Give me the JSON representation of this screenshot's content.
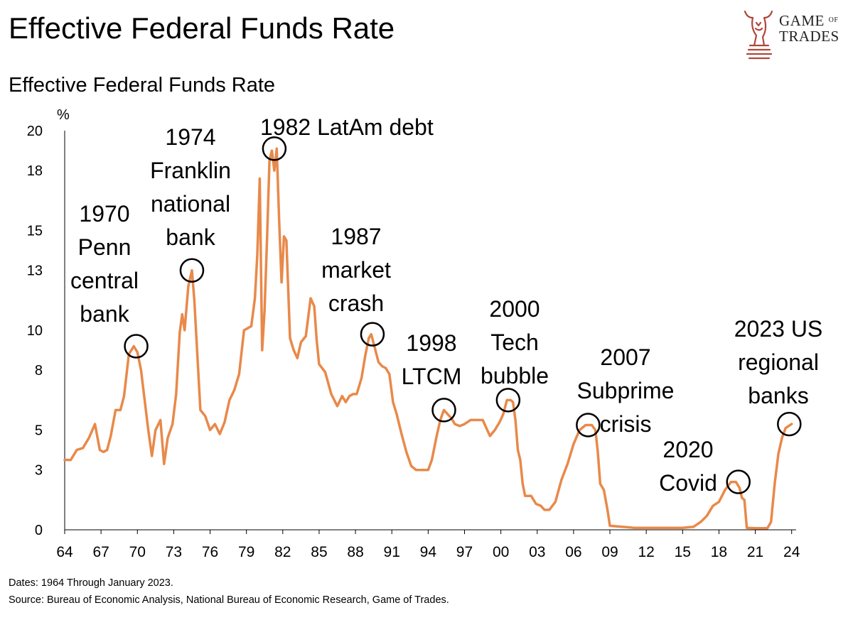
{
  "header": {
    "title": "Effective Federal Funds Rate",
    "logo": {
      "line1": "GAME",
      "of": "OF",
      "line2": "TRADES",
      "icon": "bull-chess-knight-icon",
      "color": "#b0463a"
    }
  },
  "chart_data": {
    "type": "line",
    "title": "Effective Federal Funds Rate",
    "ylabel": "%",
    "xlabel": "",
    "xlim": [
      1964,
      2024.5
    ],
    "ylim": [
      0,
      20
    ],
    "yticks": [
      0,
      3,
      5,
      8,
      10,
      13,
      15,
      18,
      20
    ],
    "xticks": [
      {
        "label": "64",
        "x": 1964
      },
      {
        "label": "67",
        "x": 1967
      },
      {
        "label": "70",
        "x": 1970
      },
      {
        "label": "73",
        "x": 1973
      },
      {
        "label": "76",
        "x": 1976
      },
      {
        "label": "79",
        "x": 1979
      },
      {
        "label": "82",
        "x": 1982
      },
      {
        "label": "85",
        "x": 1985
      },
      {
        "label": "88",
        "x": 1988
      },
      {
        "label": "91",
        "x": 1991
      },
      {
        "label": "94",
        "x": 1994
      },
      {
        "label": "97",
        "x": 1997
      },
      {
        "label": "00",
        "x": 2000
      },
      {
        "label": "03",
        "x": 2003
      },
      {
        "label": "06",
        "x": 2006
      },
      {
        "label": "09",
        "x": 2009
      },
      {
        "label": "12",
        "x": 2012
      },
      {
        "label": "15",
        "x": 2015
      },
      {
        "label": "18",
        "x": 2018
      },
      {
        "label": "21",
        "x": 2021
      },
      {
        "label": "24",
        "x": 2024
      }
    ],
    "grid": false,
    "line_color": "#e8894a",
    "series": [
      {
        "x": [
          1964.0,
          1964.5,
          1965.0,
          1965.5,
          1966.0,
          1966.5,
          1966.9,
          1967.2,
          1967.5,
          1967.8,
          1968.2,
          1968.6,
          1968.9,
          1969.3,
          1969.7,
          1970.0,
          1970.3,
          1970.6,
          1970.9,
          1971.2,
          1971.5,
          1971.9,
          1972.2,
          1972.5,
          1972.9,
          1973.2,
          1973.5,
          1973.7,
          1973.9,
          1974.2,
          1974.5,
          1974.7,
          1974.9,
          1975.2,
          1975.6,
          1976.0,
          1976.4,
          1976.8,
          1977.2,
          1977.6,
          1978.0,
          1978.4,
          1978.8,
          1979.1,
          1979.4,
          1979.7,
          1979.9,
          1980.1,
          1980.3,
          1980.5,
          1980.7,
          1980.9,
          1981.1,
          1981.3,
          1981.5,
          1981.7,
          1981.9,
          1982.1,
          1982.3,
          1982.6,
          1982.9,
          1983.2,
          1983.5,
          1983.9,
          1984.3,
          1984.6,
          1984.8,
          1985.0,
          1985.5,
          1986.0,
          1986.5,
          1986.9,
          1987.2,
          1987.5,
          1987.8,
          1988.1,
          1988.5,
          1988.8,
          1989.1,
          1989.3,
          1989.6,
          1989.9,
          1990.2,
          1990.5,
          1990.8,
          1991.1,
          1991.4,
          1991.8,
          1992.2,
          1992.6,
          1993.0,
          1993.5,
          1994.0,
          1994.3,
          1994.7,
          1995.0,
          1995.3,
          1995.6,
          1995.9,
          1996.2,
          1996.6,
          1997.0,
          1997.5,
          1998.0,
          1998.5,
          1998.8,
          1999.1,
          1999.5,
          1999.9,
          2000.2,
          2000.5,
          2000.8,
          2001.0,
          2001.2,
          2001.4,
          2001.6,
          2001.8,
          2002.0,
          2002.5,
          2002.9,
          2003.3,
          2003.6,
          2004.0,
          2004.5,
          2005.0,
          2005.5,
          2006.0,
          2006.5,
          2007.0,
          2007.5,
          2007.8,
          2008.0,
          2008.2,
          2008.5,
          2008.8,
          2009.0,
          2010.0,
          2011.0,
          2012.0,
          2013.0,
          2014.0,
          2015.0,
          2015.9,
          2016.5,
          2017.0,
          2017.5,
          2018.0,
          2018.5,
          2019.0,
          2019.4,
          2019.7,
          2019.9,
          2020.1,
          2020.3,
          2021.0,
          2022.0,
          2022.3,
          2022.6,
          2022.9,
          2023.2,
          2023.5,
          2024.0
        ],
        "values": [
          3.5,
          3.5,
          4.0,
          4.1,
          4.6,
          5.3,
          4.0,
          3.9,
          4.0,
          4.7,
          6.0,
          6.0,
          6.7,
          8.8,
          9.2,
          8.9,
          8.0,
          6.5,
          5.0,
          3.7,
          5.0,
          5.5,
          3.3,
          4.6,
          5.3,
          6.8,
          9.9,
          10.8,
          10.0,
          12.2,
          13.0,
          11.5,
          9.3,
          6.0,
          5.7,
          5.0,
          5.3,
          4.8,
          5.4,
          6.5,
          7.0,
          7.8,
          10.0,
          10.1,
          10.2,
          11.6,
          13.8,
          17.6,
          9.0,
          11.0,
          14.6,
          18.5,
          19.0,
          18.0,
          19.1,
          15.5,
          12.4,
          14.7,
          14.5,
          9.6,
          9.0,
          8.6,
          9.4,
          9.7,
          11.6,
          11.2,
          9.5,
          8.3,
          7.9,
          6.8,
          6.2,
          6.7,
          6.4,
          6.7,
          6.8,
          6.8,
          7.6,
          8.7,
          9.6,
          9.8,
          9.1,
          8.4,
          8.2,
          8.1,
          7.8,
          6.4,
          5.8,
          4.8,
          3.9,
          3.2,
          3.0,
          3.0,
          3.0,
          3.5,
          4.7,
          5.5,
          6.0,
          5.8,
          5.6,
          5.3,
          5.2,
          5.3,
          5.5,
          5.5,
          5.5,
          5.1,
          4.7,
          5.0,
          5.4,
          5.8,
          6.5,
          6.5,
          6.4,
          5.5,
          4.0,
          3.5,
          2.3,
          1.7,
          1.7,
          1.3,
          1.2,
          1.0,
          1.0,
          1.4,
          2.5,
          3.3,
          4.3,
          5.0,
          5.25,
          5.25,
          5.0,
          3.9,
          2.3,
          2.0,
          1.0,
          0.2,
          0.15,
          0.1,
          0.1,
          0.1,
          0.1,
          0.1,
          0.15,
          0.4,
          0.7,
          1.2,
          1.4,
          2.0,
          2.4,
          2.4,
          2.1,
          1.6,
          1.5,
          0.1,
          0.08,
          0.08,
          0.4,
          2.3,
          3.8,
          4.6,
          5.1,
          5.3
        ]
      }
    ],
    "annotations": [
      {
        "text": [
          "1970",
          "Penn",
          "central",
          "bank"
        ],
        "x": 1969.9,
        "y": 9.2
      },
      {
        "text": [
          "1974",
          "Franklin",
          "national",
          "bank"
        ],
        "x": 1974.5,
        "y": 13.0
      },
      {
        "text": [
          "1982 LatAm debt"
        ],
        "x": 1981.3,
        "y": 19.1
      },
      {
        "text": [
          "1987",
          "market",
          "crash"
        ],
        "x": 1989.4,
        "y": 9.8
      },
      {
        "text": [
          "1998",
          "LTCM"
        ],
        "x": 1995.3,
        "y": 6.0
      },
      {
        "text": [
          "2000",
          "Tech",
          "bubble"
        ],
        "x": 2000.6,
        "y": 6.5
      },
      {
        "text": [
          "2007",
          "Subprime",
          "crisis"
        ],
        "x": 2007.2,
        "y": 5.25
      },
      {
        "text": [
          "2020",
          "Covid"
        ],
        "x": 2019.6,
        "y": 2.4
      },
      {
        "text": [
          "2023 US",
          "regional",
          "banks"
        ],
        "x": 2023.8,
        "y": 5.3
      }
    ]
  },
  "footer": {
    "dates": "Dates: 1964 Through January 2023.",
    "source": "Source: Bureau of Economic Analysis, National Bureau of Economic Research, Game of Trades."
  }
}
